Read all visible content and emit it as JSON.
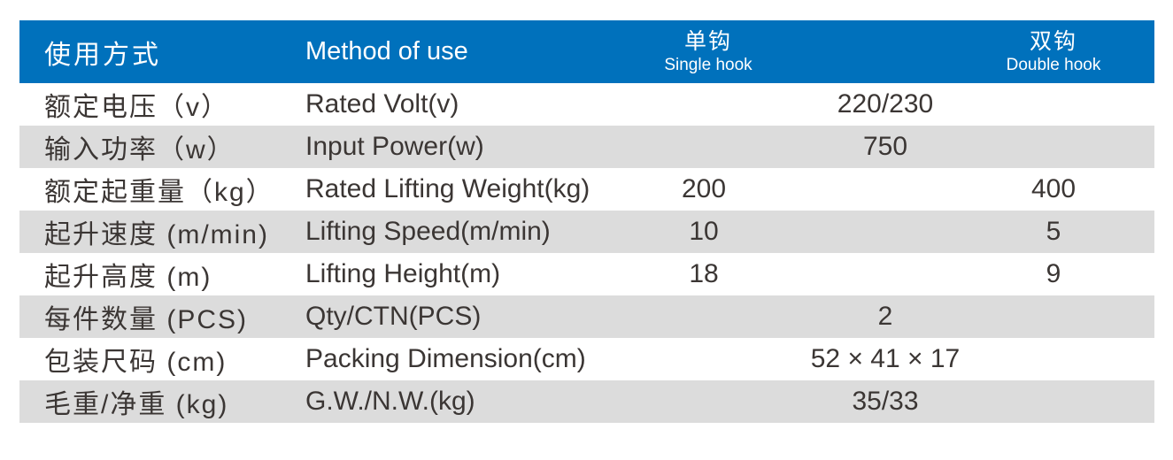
{
  "table": {
    "header": {
      "usage_zh": "使用方式",
      "usage_en": "Method of use",
      "single_hook_zh": "单钩",
      "single_hook_en": "Single hook",
      "double_hook_zh": "双钩",
      "double_hook_en": "Double hook"
    },
    "rows": [
      {
        "zh": "额定电压（v）",
        "en": "Rated Volt(v)",
        "merged": "220/230"
      },
      {
        "zh": "输入功率（w）",
        "en": "Input Power(w)",
        "merged": "750"
      },
      {
        "zh": "额定起重量（kg）",
        "en": "Rated Lifting Weight(kg)",
        "single": "200",
        "double": "400"
      },
      {
        "zh": "起升速度 (m/min)",
        "en": "Lifting Speed(m/min)",
        "single": "10",
        "double": "5"
      },
      {
        "zh": "起升高度 (m)",
        "en": "Lifting Height(m)",
        "single": "18",
        "double": "9"
      },
      {
        "zh": "每件数量 (PCS)",
        "en": "Qty/CTN(PCS)",
        "merged": "2"
      },
      {
        "zh": "包装尺码 (cm)",
        "en": "Packing Dimension(cm)",
        "merged": "52 × 41 × 17"
      },
      {
        "zh": "毛重/净重 (kg)",
        "en": "G.W./N.W.(kg)",
        "merged": "35/33"
      }
    ],
    "colors": {
      "header_bg": "#0071bc",
      "stripe_bg": "#dcdcdc",
      "row_bg": "#ffffff",
      "header_text": "#ffffff",
      "body_text": "#3b3634"
    }
  }
}
